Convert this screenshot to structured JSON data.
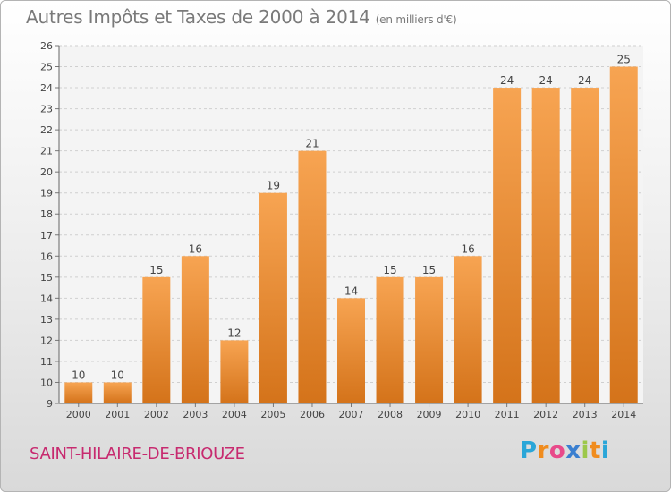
{
  "chart_data": {
    "type": "bar",
    "title": "Autres Impôts et Taxes de 2000 à 2014",
    "subtitle": "(en milliers d'€)",
    "categories": [
      "2000",
      "2001",
      "2002",
      "2003",
      "2004",
      "2005",
      "2006",
      "2007",
      "2008",
      "2009",
      "2010",
      "2011",
      "2012",
      "2013",
      "2014"
    ],
    "values": [
      10,
      10,
      15,
      16,
      12,
      19,
      21,
      14,
      15,
      15,
      16,
      24,
      24,
      24,
      25
    ],
    "ylim": [
      9,
      26
    ],
    "yticks": [
      9,
      10,
      11,
      12,
      13,
      14,
      15,
      16,
      17,
      18,
      19,
      20,
      21,
      22,
      23,
      24,
      25,
      26
    ],
    "grid": true,
    "bar_color_top": "#f7a452",
    "bar_color_bottom": "#d4731a"
  },
  "location": "SAINT-HILAIRE-DE-BRIOUZE",
  "brand": {
    "letters": [
      "P",
      "r",
      "o",
      "x",
      "i",
      "t",
      "i"
    ],
    "colors": [
      "#2aa6d8",
      "#f08c1e",
      "#e84a8a",
      "#3a7fd0",
      "#9cc84a",
      "#f08c1e",
      "#2aa6d8"
    ]
  }
}
